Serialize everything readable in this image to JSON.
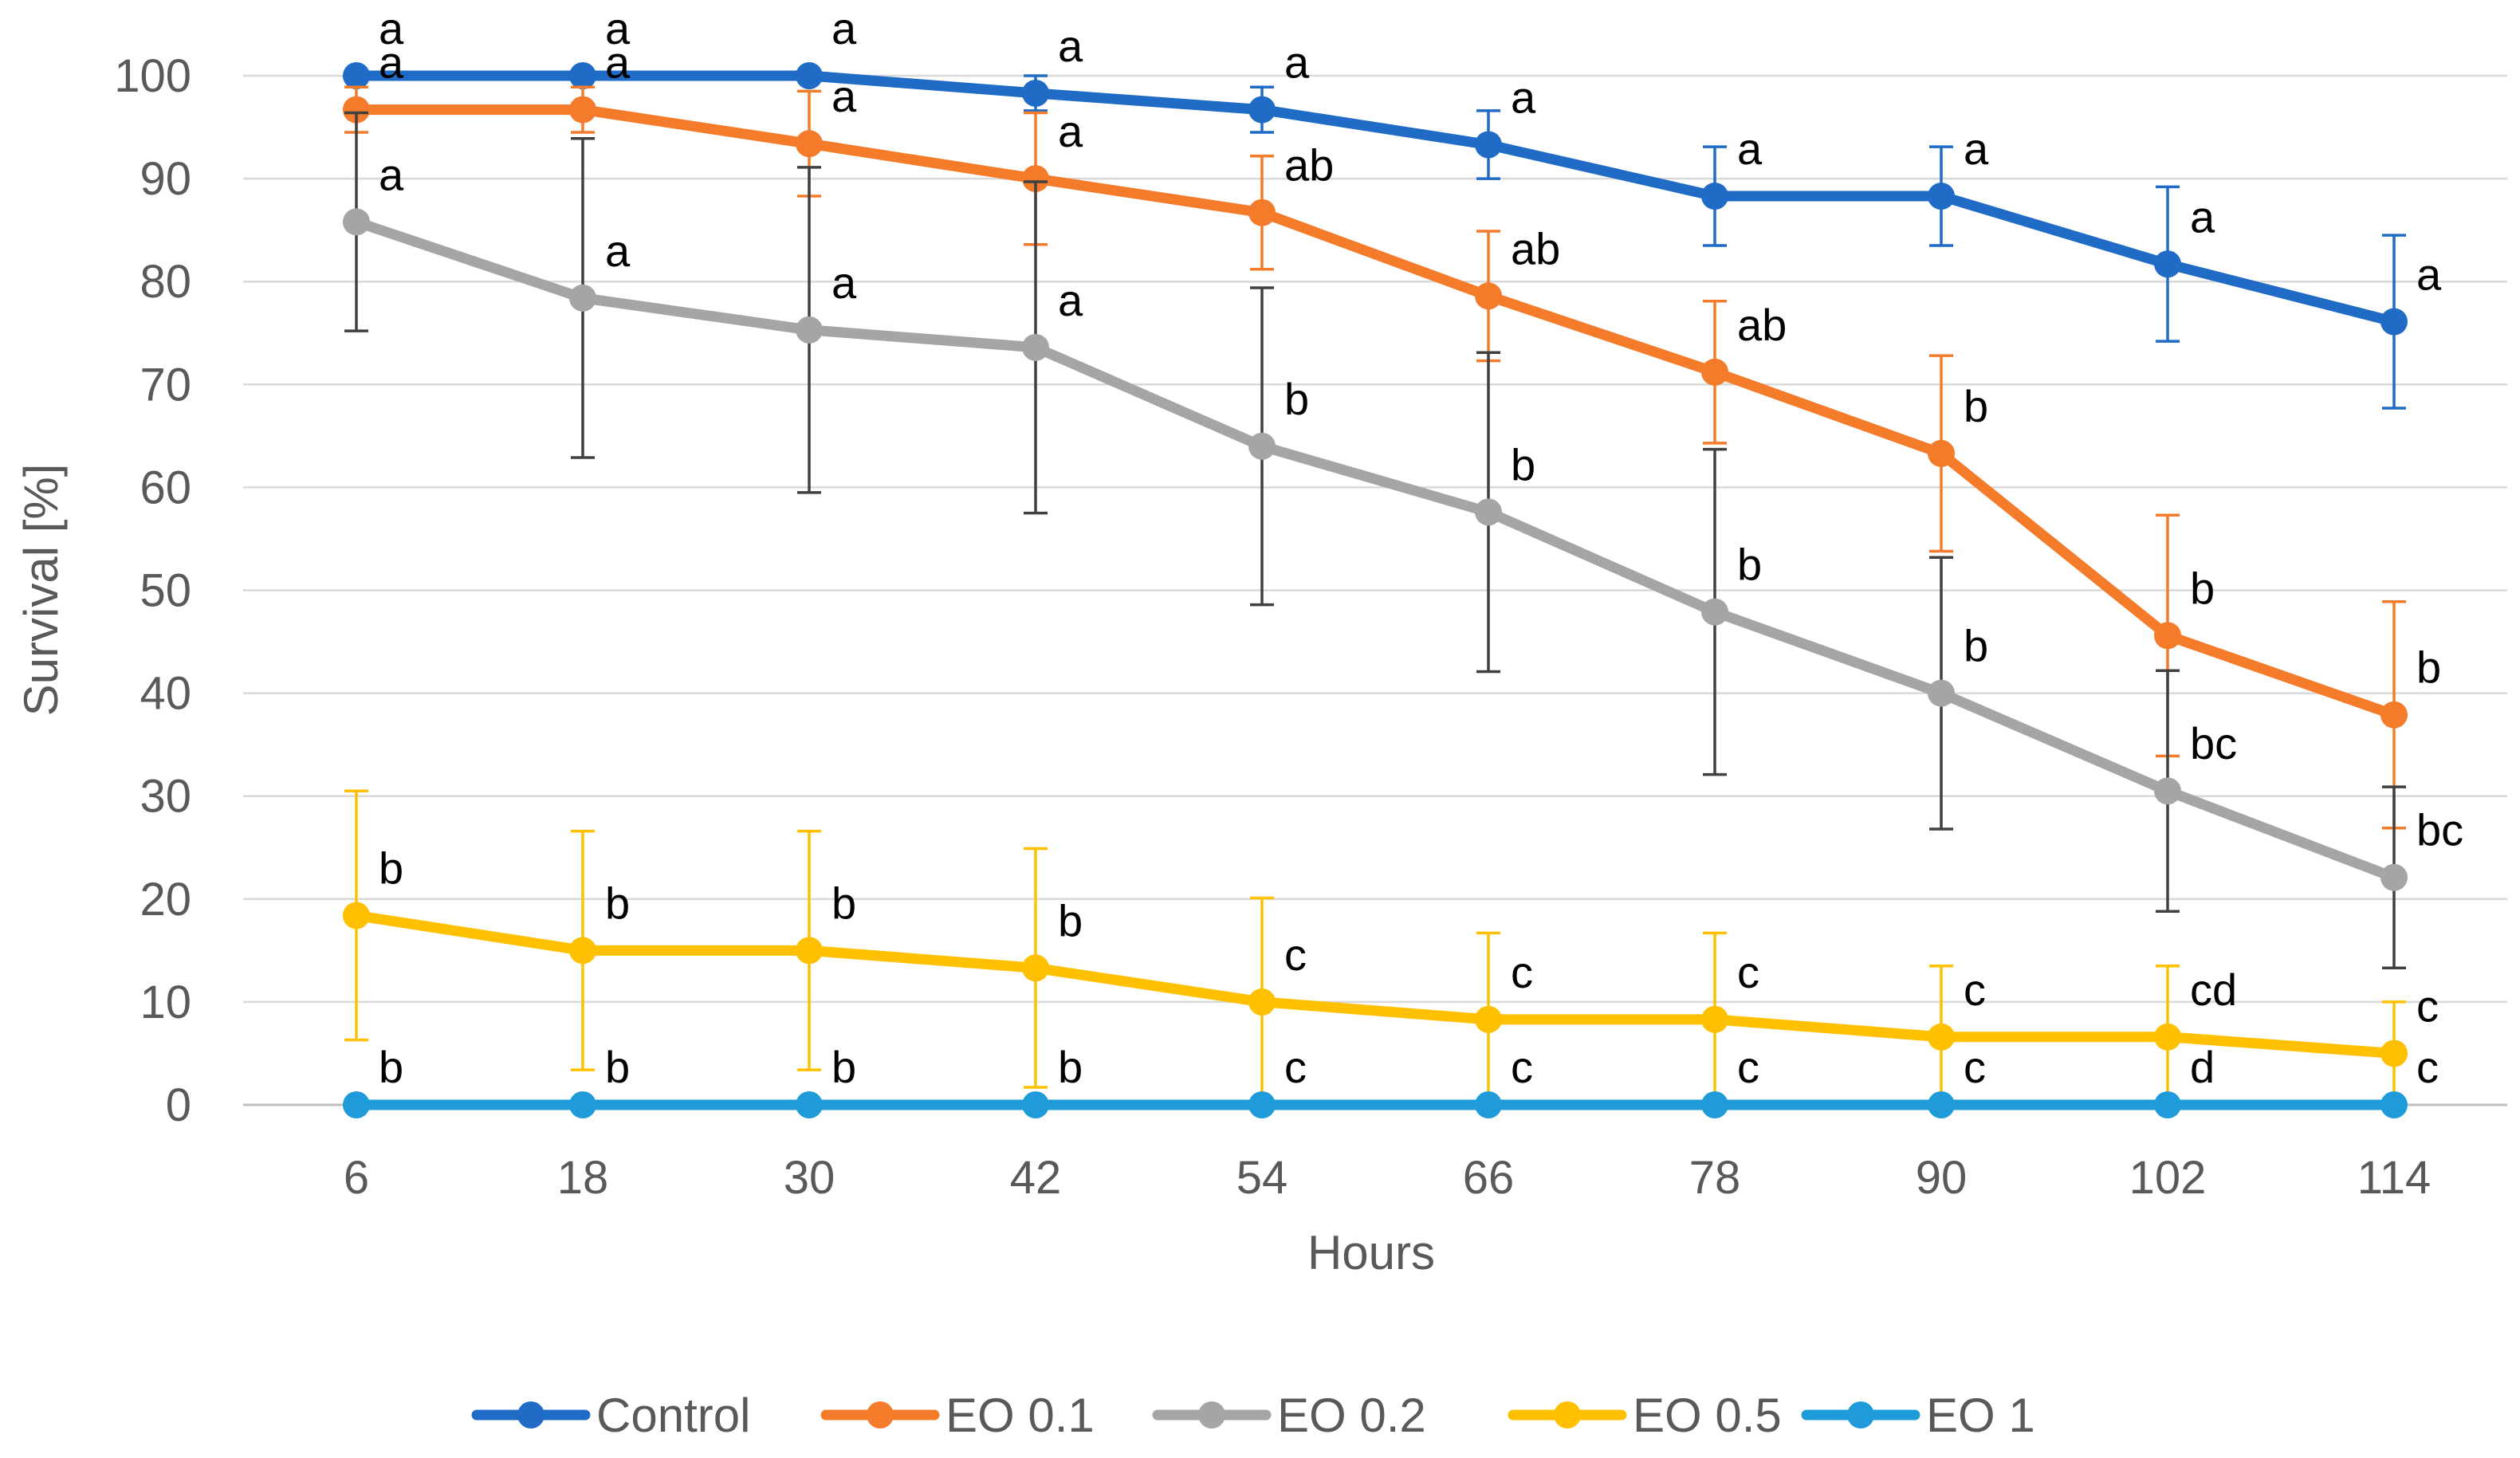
{
  "chart_data": {
    "type": "line",
    "title": "",
    "xlabel": "Hours",
    "ylabel": "Survival [%]",
    "ylim": [
      0,
      100
    ],
    "yticks": [
      0,
      10,
      20,
      30,
      40,
      50,
      60,
      70,
      80,
      90,
      100
    ],
    "categories": [
      "6",
      "18",
      "30",
      "42",
      "54",
      "66",
      "78",
      "90",
      "102",
      "114"
    ],
    "grid": true,
    "legend": "bottom",
    "series": [
      {
        "name": "Control",
        "color": "#1F6BC5",
        "values": [
          100,
          100,
          100,
          98.3,
          96.7,
          93.3,
          88.3,
          88.3,
          81.7,
          76.1
        ],
        "errors": [
          0,
          0,
          0,
          1.7,
          2.2,
          3.3,
          4.8,
          4.8,
          7.5,
          8.4
        ],
        "letters": [
          "a",
          "a",
          "a",
          "a",
          "a",
          "a",
          "a",
          "a",
          "a",
          "a"
        ]
      },
      {
        "name": "EO 0.1",
        "color": "#F47B2A",
        "values": [
          96.7,
          96.7,
          93.4,
          90,
          86.7,
          78.6,
          71.2,
          63.3,
          45.6,
          37.9
        ],
        "errors": [
          2.2,
          2.2,
          5.1,
          6.4,
          5.5,
          6.3,
          6.9,
          9.5,
          11.7,
          11
        ],
        "letters": [
          "a",
          "a",
          "a",
          "a",
          "ab",
          "ab",
          "ab",
          "b",
          "b",
          "b"
        ]
      },
      {
        "name": "EO 0.2",
        "color": "#A5A5A5",
        "values": [
          85.8,
          78.4,
          75.3,
          73.6,
          64,
          57.6,
          47.9,
          40,
          30.5,
          22.1
        ],
        "errors": [
          10.6,
          15.5,
          15.8,
          16.1,
          15.4,
          15.5,
          15.8,
          13.2,
          11.7,
          8.8
        ],
        "letters": [
          "a",
          "a",
          "a",
          "a",
          "b",
          "b",
          "b",
          "b",
          "bc",
          "bc"
        ]
      },
      {
        "name": "EO 0.5",
        "color": "#FFC000",
        "values": [
          18.4,
          15,
          15,
          13.3,
          10,
          8.3,
          8.3,
          6.6,
          6.6,
          5
        ],
        "errors": [
          12.1,
          11.6,
          11.6,
          11.6,
          10.1,
          8.4,
          8.4,
          6.9,
          6.9,
          5
        ],
        "letters": [
          "b",
          "b",
          "b",
          "b",
          "c",
          "c",
          "c",
          "c",
          "cd",
          "c"
        ]
      },
      {
        "name": "EO 1",
        "color": "#1F9BD9",
        "values": [
          0,
          0,
          0,
          0,
          0,
          0,
          0,
          0,
          0,
          0
        ],
        "errors": [
          0,
          0,
          0,
          0,
          0,
          0,
          0,
          0,
          0,
          0
        ],
        "letters": [
          "b",
          "b",
          "b",
          "b",
          "c",
          "c",
          "c",
          "c",
          "d",
          "c"
        ]
      }
    ]
  }
}
